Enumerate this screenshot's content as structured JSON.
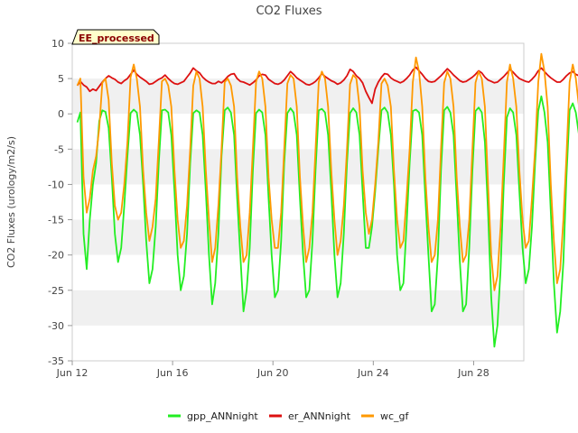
{
  "chart_data": {
    "type": "line",
    "title": "CO2 Fluxes",
    "xlabel": "",
    "ylabel": "CO2 Fluxes (urology/m2/s)",
    "xlim": [
      0,
      18
    ],
    "ylim": [
      -35,
      10
    ],
    "yticks": [
      10,
      5,
      0,
      -5,
      -10,
      -15,
      -20,
      -25,
      -30,
      -35
    ],
    "xticks": [
      {
        "day": 0,
        "label": "Jun 12"
      },
      {
        "day": 4,
        "label": "Jun 16"
      },
      {
        "day": 8,
        "label": "Jun 20"
      },
      {
        "day": 12,
        "label": "Jun 24"
      },
      {
        "day": 16,
        "label": "Jun 28"
      }
    ],
    "badge": "EE_processed",
    "colors": {
      "gpp": "#22ee22",
      "er": "#dd1111",
      "wc": "#ff9900"
    },
    "series_meta": [
      {
        "key": "gpp",
        "name": "gpp_ANNnight"
      },
      {
        "key": "er",
        "name": "er_ANNnight"
      },
      {
        "key": "wc",
        "name": "wc_gf"
      }
    ],
    "x_start": 0.2,
    "step_days": 0.125,
    "series": {
      "gpp": [
        -1.2,
        0.2,
        -17,
        -22,
        -15,
        -10,
        -7,
        -1,
        0.5,
        0.3,
        -2,
        -9,
        -17,
        -21,
        -19,
        -13,
        -6,
        0.1,
        0.6,
        0.2,
        -3,
        -10,
        -18,
        -24,
        -22,
        -16,
        -7,
        0.5,
        0.6,
        0.2,
        -3,
        -11,
        -20,
        -25,
        -23,
        -17,
        -7,
        0.1,
        0.5,
        0.2,
        -3,
        -11,
        -20,
        -27,
        -24,
        -17,
        -6,
        0.5,
        0.9,
        0.2,
        -3,
        -12,
        -20,
        -28,
        -25,
        -19,
        -8,
        0.1,
        0.6,
        0.2,
        -3,
        -12,
        -20,
        -26,
        -25,
        -18,
        -7,
        0.1,
        0.8,
        0.2,
        -3,
        -12,
        -20,
        -26,
        -25,
        -18,
        -8,
        0.5,
        0.7,
        0.2,
        -3,
        -11,
        -20,
        -26,
        -24,
        -17,
        -7,
        0.1,
        0.8,
        0.2,
        -3,
        -11,
        -19,
        -19,
        -16,
        -11,
        -5,
        0.5,
        0.9,
        0.2,
        -3,
        -10,
        -20,
        -25,
        -24,
        -16,
        -7,
        0.4,
        0.6,
        0.2,
        -3,
        -12,
        -20,
        -28,
        -27,
        -20,
        -8,
        0.5,
        1.0,
        0.2,
        -3,
        -12,
        -21,
        -28,
        -27,
        -19,
        -8,
        0.4,
        0.9,
        0.2,
        -4,
        -14,
        -26,
        -33,
        -30,
        -22,
        -10,
        -0.5,
        0.8,
        0.2,
        -3,
        -11,
        -19,
        -24,
        -22,
        -16,
        -7,
        0.4,
        2.5,
        0.2,
        -4,
        -14,
        -24,
        -31,
        -28,
        -21,
        -9,
        0.5,
        1.5,
        0.2,
        -3,
        -11,
        -19,
        -28,
        -26,
        -16,
        -5,
        1.0,
        2.0
      ],
      "er": [
        4.0,
        4.6,
        4.1,
        3.8,
        3.2,
        3.5,
        3.3,
        3.9,
        4.5,
        5.0,
        5.4,
        5.1,
        4.9,
        4.5,
        4.3,
        4.7,
        5.0,
        5.6,
        6.2,
        5.6,
        5.2,
        4.9,
        4.6,
        4.2,
        4.3,
        4.6,
        4.9,
        5.1,
        5.5,
        5.0,
        4.6,
        4.3,
        4.2,
        4.4,
        4.6,
        5.2,
        5.8,
        6.5,
        6.1,
        5.8,
        5.2,
        4.8,
        4.5,
        4.3,
        4.3,
        4.6,
        4.4,
        4.8,
        5.3,
        5.6,
        5.7,
        5.0,
        4.6,
        4.5,
        4.3,
        4.1,
        4.4,
        4.8,
        5.4,
        5.6,
        5.5,
        4.9,
        4.6,
        4.3,
        4.2,
        4.4,
        4.8,
        5.4,
        6.0,
        5.6,
        5.1,
        4.8,
        4.5,
        4.2,
        4.1,
        4.3,
        4.6,
        5.1,
        5.7,
        5.3,
        5.0,
        4.7,
        4.5,
        4.2,
        4.4,
        4.8,
        5.4,
        6.3,
        6.0,
        5.4,
        5.0,
        4.4,
        3.2,
        2.3,
        1.5,
        3.5,
        4.5,
        5.2,
        5.7,
        5.6,
        5.1,
        4.8,
        4.6,
        4.4,
        4.6,
        5.0,
        5.5,
        6.2,
        6.6,
        6.1,
        5.6,
        5.0,
        4.6,
        4.5,
        4.6,
        5.0,
        5.4,
        5.9,
        6.4,
        6.0,
        5.5,
        5.1,
        4.7,
        4.5,
        4.6,
        4.9,
        5.2,
        5.6,
        6.1,
        5.8,
        5.2,
        4.8,
        4.6,
        4.4,
        4.5,
        4.9,
        5.3,
        5.8,
        6.3,
        5.9,
        5.4,
        5.0,
        4.8,
        4.6,
        4.5,
        4.9,
        5.4,
        6.1,
        6.5,
        6.0,
        5.5,
        5.1,
        4.8,
        4.5,
        4.5,
        4.9,
        5.4,
        5.8,
        6.0,
        5.6,
        5.4
      ],
      "wc": [
        4.0,
        5.0,
        -9,
        -14,
        -12,
        -8,
        -6,
        -2,
        4.4,
        5.0,
        2.0,
        -7,
        -13,
        -15,
        -14,
        -10,
        -4,
        5.2,
        7.0,
        5.0,
        1.0,
        -8,
        -14,
        -18,
        -16,
        -12,
        -4,
        4.6,
        5.0,
        4.0,
        1.0,
        -8,
        -15,
        -19,
        -18,
        -13,
        -5,
        4.0,
        6.0,
        5.0,
        1.0,
        -8,
        -15,
        -21,
        -19,
        -13,
        -5,
        4.5,
        5.0,
        4.0,
        1.0,
        -9,
        -16,
        -21,
        -20,
        -14,
        -5,
        4.5,
        6.0,
        5.0,
        1.0,
        -9,
        -15,
        -19,
        -19,
        -14,
        -5,
        4.3,
        5.5,
        5.0,
        1.0,
        -9,
        -16,
        -21,
        -19,
        -14,
        -5,
        4.5,
        6.0,
        5.0,
        1.0,
        -8,
        -15,
        -20,
        -18,
        -13,
        -5,
        4.2,
        5.5,
        5.0,
        1.0,
        -8,
        -14,
        -17,
        -15,
        -10,
        -4,
        4.3,
        5.0,
        4.0,
        1.0,
        -8,
        -15,
        -19,
        -18,
        -12,
        -5,
        4.5,
        8.0,
        6.0,
        1.0,
        -9,
        -16,
        -21,
        -20,
        -15,
        -5,
        4.4,
        6.0,
        5.0,
        1.0,
        -9,
        -16,
        -21,
        -20,
        -15,
        -5,
        4.4,
        6.0,
        5.0,
        1.0,
        -10,
        -20,
        -25,
        -23,
        -16,
        -6,
        4.5,
        7.0,
        5.0,
        1.0,
        -8,
        -15,
        -19,
        -18,
        -12,
        -5,
        4.5,
        8.5,
        6.0,
        1.0,
        -10,
        -18,
        -24,
        -22,
        -15,
        -6,
        4.5,
        7.0,
        5.0,
        1.0,
        -8,
        -15,
        -21,
        -19,
        -11,
        -4,
        6.0,
        7.5
      ]
    }
  }
}
